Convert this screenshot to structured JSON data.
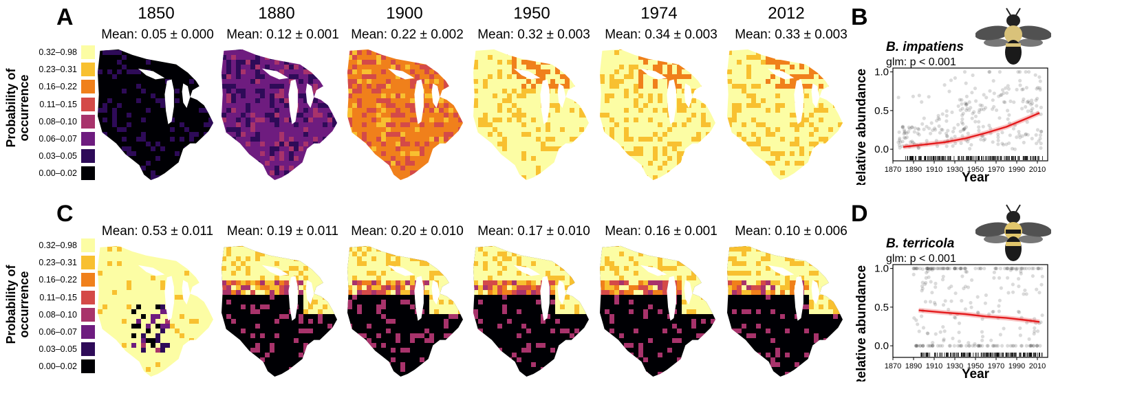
{
  "panels": {
    "A": "A",
    "B": "B",
    "C": "C",
    "D": "D"
  },
  "legend": {
    "title_line1": "Probability of",
    "title_line2": "occurrence",
    "items": [
      {
        "label": "0.32–0.98",
        "color": "#FCFDA4"
      },
      {
        "label": "0.23–0.31",
        "color": "#F8C030"
      },
      {
        "label": "0.16–0.22",
        "color": "#F0801B"
      },
      {
        "label": "0.11–0.15",
        "color": "#D44A48"
      },
      {
        "label": "0.08–0.10",
        "color": "#A8336B"
      },
      {
        "label": "0.06–0.07",
        "color": "#6E1C7F"
      },
      {
        "label": "0.03–0.05",
        "color": "#2E0B58"
      },
      {
        "label": "0.00–0.02",
        "color": "#000004"
      }
    ]
  },
  "years": [
    "1850",
    "1880",
    "1900",
    "1950",
    "1974",
    "2012"
  ],
  "rowA": {
    "means": [
      "Mean: 0.05 ± 0.000",
      "Mean: 0.12 ± 0.001",
      "Mean: 0.22 ± 0.002",
      "Mean: 0.32 ± 0.003",
      "Mean: 0.34 ± 0.003",
      "Mean: 0.33 ± 0.003"
    ],
    "dominant_class": [
      7,
      5,
      2,
      0,
      0,
      0
    ]
  },
  "rowC": {
    "means": [
      "Mean: 0.53 ± 0.011",
      "Mean: 0.19 ± 0.011",
      "Mean: 0.20 ± 0.010",
      "Mean: 0.17 ± 0.010",
      "Mean: 0.16 ± 0.001",
      "Mean: 0.10 ± 0.006"
    ],
    "dominant_class": [
      0,
      7,
      7,
      7,
      7,
      7
    ]
  },
  "chart_data": [
    {
      "type": "scatter",
      "species": "B. impatiens",
      "stat": "glm: p < 0.001",
      "xlabel": "Year",
      "ylabel": "Relative abundance",
      "xlim": [
        1870,
        2020
      ],
      "ylim": [
        -0.15,
        1.05
      ],
      "xticks": [
        1870,
        1890,
        1910,
        1930,
        1950,
        1970,
        1990,
        2010
      ],
      "yticks": [
        "0.0",
        "0.5",
        "1.0"
      ],
      "yticks_values": [
        0,
        0.5,
        1
      ],
      "fit": {
        "x": [
          1880,
          1900,
          1920,
          1940,
          1960,
          1980,
          2000,
          2012
        ],
        "y": [
          0.03,
          0.06,
          0.09,
          0.14,
          0.21,
          0.29,
          0.4,
          0.47
        ]
      },
      "fit_color": "#E41A1C"
    },
    {
      "type": "scatter",
      "species": "B. terricola",
      "stat": "glm: p < 0.001",
      "xlabel": "Year",
      "ylabel": "Relative abundance",
      "xlim": [
        1870,
        2020
      ],
      "ylim": [
        -0.15,
        1.05
      ],
      "xticks": [
        1870,
        1890,
        1910,
        1930,
        1950,
        1970,
        1990,
        2010
      ],
      "yticks": [
        "0.0",
        "0.5",
        "1.0"
      ],
      "yticks_values": [
        0,
        0.5,
        1
      ],
      "fit": {
        "x": [
          1895,
          1920,
          1940,
          1960,
          1980,
          2000,
          2012
        ],
        "y": [
          0.46,
          0.43,
          0.41,
          0.38,
          0.36,
          0.33,
          0.31
        ]
      },
      "fit_color": "#E41A1C"
    }
  ]
}
